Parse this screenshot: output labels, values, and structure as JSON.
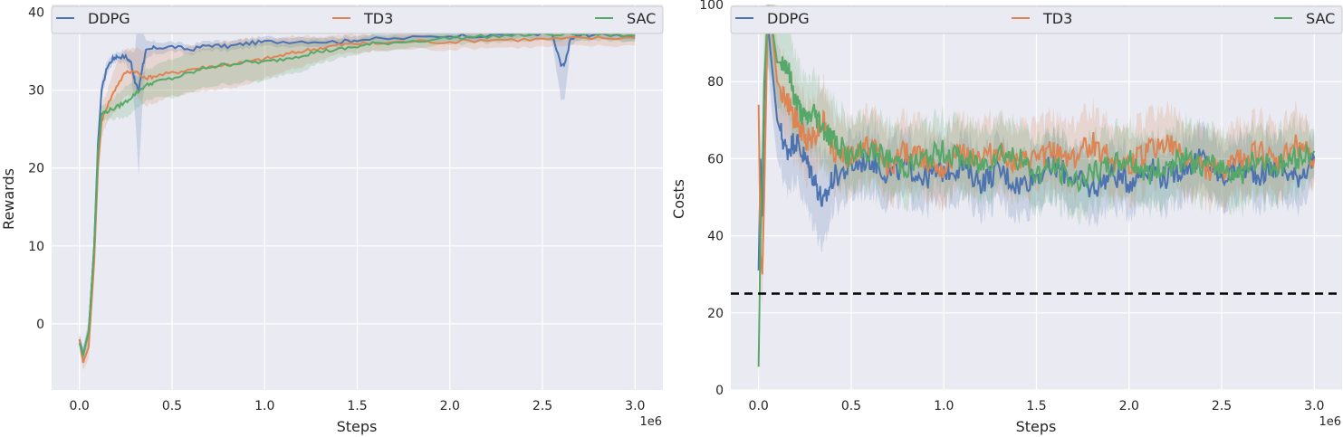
{
  "chart_data": [
    {
      "type": "line",
      "xlabel": "Steps",
      "ylabel": "Rewards",
      "x_offset_label": "1e6",
      "xlim": [
        -0.15,
        3.15
      ],
      "ylim": [
        -8.5,
        41
      ],
      "xticks": [
        0.0,
        0.5,
        1.0,
        1.5,
        2.0,
        2.5,
        3.0
      ],
      "xtick_labels": [
        "0.0",
        "0.5",
        "1.0",
        "1.5",
        "2.0",
        "2.5",
        "3.0"
      ],
      "yticks": [
        0,
        10,
        20,
        30,
        40
      ],
      "ytick_labels": [
        "0",
        "10",
        "20",
        "30",
        "40"
      ],
      "grid": true,
      "legend": "top, single row",
      "series": [
        {
          "name": "DDPG",
          "color": "#4c72b0",
          "x": [
            0.0,
            0.02,
            0.05,
            0.08,
            0.1,
            0.12,
            0.15,
            0.18,
            0.2,
            0.25,
            0.28,
            0.3,
            0.32,
            0.34,
            0.36,
            0.4,
            0.5,
            0.6,
            0.7,
            0.8,
            0.9,
            1.0,
            1.2,
            1.4,
            1.5,
            1.7,
            2.0,
            2.2,
            2.4,
            2.55,
            2.6,
            2.62,
            2.65,
            2.7,
            2.8,
            3.0
          ],
          "y": [
            -2,
            -4,
            -1,
            10,
            23,
            30,
            33,
            34,
            34.3,
            34.3,
            33.5,
            31,
            30,
            33,
            35,
            35.4,
            35.6,
            35.2,
            35.8,
            35.6,
            36,
            36.2,
            36.3,
            36.2,
            36.5,
            36.6,
            37,
            37,
            37.3,
            37.2,
            33.2,
            33.2,
            36.5,
            37,
            37.2,
            37
          ],
          "band": [
            0.5,
            1,
            1,
            1.5,
            1.5,
            1,
            0.8,
            0.6,
            0.6,
            0.8,
            1.5,
            4,
            11,
            5,
            1.2,
            0.8,
            0.6,
            0.6,
            0.6,
            0.6,
            0.6,
            0.6,
            0.6,
            0.6,
            0.6,
            0.6,
            0.6,
            0.6,
            0.6,
            0.8,
            4.5,
            4.5,
            0.8,
            0.6,
            0.6,
            0.6
          ]
        },
        {
          "name": "TD3",
          "color": "#dd8452",
          "x": [
            0.0,
            0.02,
            0.05,
            0.08,
            0.1,
            0.12,
            0.15,
            0.2,
            0.25,
            0.3,
            0.35,
            0.4,
            0.5,
            0.6,
            0.7,
            0.8,
            0.9,
            1.0,
            1.1,
            1.2,
            1.3,
            1.4,
            1.5,
            1.6,
            1.8,
            2.0,
            2.2,
            2.4,
            2.6,
            2.8,
            3.0
          ],
          "y": [
            -2,
            -5,
            -3,
            8,
            20,
            26,
            28,
            30.5,
            32.3,
            32.5,
            31.5,
            31.8,
            32.2,
            32.7,
            33,
            33.3,
            33.6,
            34,
            34.5,
            35,
            35.4,
            35.8,
            36,
            36,
            36.3,
            36.2,
            36.5,
            36.5,
            36.6,
            36.7,
            36.7
          ],
          "band": [
            1,
            1,
            1.5,
            2,
            2,
            2,
            2,
            3,
            3,
            3,
            3.5,
            3.5,
            3,
            3,
            3,
            3,
            3,
            2.5,
            2.2,
            2,
            1.5,
            1.2,
            1.2,
            1,
            1,
            1,
            1,
            1,
            1,
            1,
            1
          ]
        },
        {
          "name": "SAC",
          "color": "#55a868",
          "x": [
            0.0,
            0.02,
            0.05,
            0.08,
            0.1,
            0.12,
            0.15,
            0.2,
            0.25,
            0.3,
            0.35,
            0.4,
            0.5,
            0.6,
            0.7,
            0.8,
            0.9,
            1.0,
            1.1,
            1.2,
            1.3,
            1.4,
            1.5,
            1.6,
            1.8,
            2.0,
            2.2,
            2.4,
            2.6,
            2.8,
            3.0
          ],
          "y": [
            -2.5,
            -4,
            -1,
            10,
            22,
            27,
            27.3,
            27.8,
            28.5,
            29.5,
            30.5,
            31,
            31.5,
            32.2,
            33,
            33.3,
            33.6,
            33.6,
            34,
            34.5,
            35,
            35.2,
            35.6,
            36,
            36.3,
            36.7,
            36.9,
            37.1,
            37.2,
            37.2,
            37
          ],
          "band": [
            1,
            1,
            1.5,
            2,
            2,
            1,
            1,
            1.5,
            2,
            2,
            2,
            2,
            2.5,
            2.5,
            2.5,
            2.5,
            2.5,
            2.5,
            2,
            2,
            1.5,
            1.2,
            1,
            1,
            0.8,
            0.8,
            0.8,
            0.8,
            0.8,
            0.8,
            0.8
          ]
        }
      ]
    },
    {
      "type": "line",
      "xlabel": "Steps",
      "ylabel": "Costs",
      "x_offset_label": "1e6",
      "xlim": [
        -0.15,
        3.15
      ],
      "ylim": [
        0,
        100
      ],
      "xticks": [
        0.0,
        0.5,
        1.0,
        1.5,
        2.0,
        2.5,
        3.0
      ],
      "xtick_labels": [
        "0.0",
        "0.5",
        "1.0",
        "1.5",
        "2.0",
        "2.5",
        "3.0"
      ],
      "yticks": [
        0,
        20,
        40,
        60,
        80,
        100
      ],
      "ytick_labels": [
        "0",
        "20",
        "40",
        "60",
        "80",
        "100"
      ],
      "grid": true,
      "legend": "top, single row",
      "threshold": {
        "y": 25,
        "color": "#000000",
        "style": "dashed"
      },
      "series": [
        {
          "name": "DDPG",
          "color": "#4c72b0",
          "x": [
            0.0,
            0.01,
            0.02,
            0.03,
            0.05,
            0.07,
            0.1,
            0.15,
            0.2,
            0.25,
            0.3,
            0.35,
            0.4,
            0.5,
            0.6,
            0.7,
            0.8,
            0.9,
            1.0,
            1.1,
            1.2,
            1.3,
            1.4,
            1.5,
            1.6,
            1.7,
            1.8,
            1.9,
            2.0,
            2.1,
            2.2,
            2.3,
            2.4,
            2.5,
            2.6,
            2.7,
            2.8,
            2.9,
            3.0
          ],
          "y": [
            31,
            60,
            45,
            75,
            95,
            85,
            70,
            62,
            65,
            60,
            55,
            48,
            55,
            58,
            60,
            56,
            58,
            55,
            57,
            58,
            54,
            57,
            53,
            56,
            58,
            55,
            52,
            56,
            54,
            58,
            55,
            58,
            60,
            55,
            58,
            56,
            58,
            55,
            60
          ],
          "band": [
            4,
            8,
            8,
            10,
            10,
            12,
            10,
            10,
            10,
            12,
            12,
            12,
            8,
            8,
            8,
            8,
            8,
            8,
            8,
            8,
            8,
            8,
            8,
            8,
            8,
            8,
            8,
            8,
            8,
            8,
            8,
            8,
            8,
            8,
            8,
            8,
            8,
            8,
            6
          ]
        },
        {
          "name": "TD3",
          "color": "#dd8452",
          "x": [
            0.0,
            0.01,
            0.02,
            0.03,
            0.05,
            0.07,
            0.1,
            0.15,
            0.2,
            0.25,
            0.3,
            0.35,
            0.4,
            0.5,
            0.6,
            0.7,
            0.8,
            0.9,
            1.0,
            1.1,
            1.2,
            1.3,
            1.4,
            1.5,
            1.6,
            1.7,
            1.8,
            1.9,
            2.0,
            2.1,
            2.2,
            2.3,
            2.4,
            2.5,
            2.6,
            2.7,
            2.8,
            2.9,
            3.0
          ],
          "y": [
            74,
            35,
            30,
            50,
            98,
            95,
            80,
            75,
            70,
            65,
            66,
            70,
            62,
            60,
            64,
            58,
            62,
            60,
            58,
            62,
            60,
            62,
            58,
            60,
            62,
            60,
            64,
            60,
            58,
            62,
            64,
            60,
            58,
            56,
            60,
            62,
            58,
            64,
            60
          ],
          "band": [
            5,
            8,
            8,
            10,
            10,
            12,
            10,
            10,
            10,
            10,
            10,
            10,
            9,
            9,
            9,
            9,
            9,
            9,
            9,
            9,
            9,
            9,
            9,
            9,
            9,
            9,
            9,
            9,
            9,
            9,
            9,
            9,
            9,
            9,
            9,
            9,
            9,
            9,
            6
          ]
        },
        {
          "name": "SAC",
          "color": "#55a868",
          "x": [
            0.0,
            0.01,
            0.02,
            0.03,
            0.05,
            0.07,
            0.1,
            0.15,
            0.2,
            0.25,
            0.3,
            0.35,
            0.4,
            0.5,
            0.6,
            0.7,
            0.8,
            0.9,
            1.0,
            1.1,
            1.2,
            1.3,
            1.4,
            1.5,
            1.6,
            1.7,
            1.8,
            1.9,
            2.0,
            2.1,
            2.2,
            2.3,
            2.4,
            2.5,
            2.6,
            2.7,
            2.8,
            2.9,
            3.0
          ],
          "y": [
            6,
            40,
            55,
            80,
            98,
            95,
            85,
            85,
            75,
            70,
            72,
            68,
            65,
            60,
            62,
            60,
            58,
            60,
            62,
            60,
            58,
            62,
            60,
            56,
            58,
            54,
            56,
            58,
            60,
            56,
            58,
            60,
            58,
            58,
            56,
            60,
            58,
            60,
            62
          ],
          "band": [
            5,
            12,
            12,
            14,
            14,
            14,
            12,
            12,
            12,
            10,
            10,
            10,
            10,
            9,
            9,
            9,
            9,
            9,
            9,
            9,
            9,
            9,
            9,
            9,
            9,
            9,
            9,
            9,
            9,
            9,
            9,
            9,
            9,
            9,
            9,
            9,
            9,
            9,
            6
          ]
        }
      ]
    }
  ]
}
